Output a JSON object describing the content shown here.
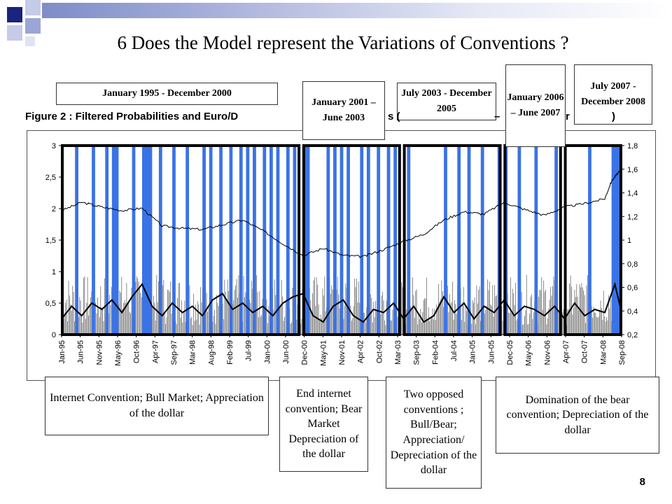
{
  "slide": {
    "title": "6 Does the Model represent the Variations of Conventions ?",
    "page_number": "8",
    "accent_color": "#9aa6d6"
  },
  "figure_caption": "Figure 2 : Filtered Probabilities and Euro/D",
  "caption_fragments": [
    "s (",
    "– ",
    "r",
    ")"
  ],
  "period_boxes": [
    {
      "label": "January 1995 - December 2000"
    },
    {
      "label": "January 2001 – June 2003"
    },
    {
      "label": "July 2003 - December 2005"
    },
    {
      "label": "January 2006 – June 2007"
    },
    {
      "label": "July 2007 - December 2008"
    }
  ],
  "annotations": [
    {
      "text": "Internet Convention; Bull Market; Appreciation of the dollar"
    },
    {
      "text": "End internet convention; Bear Market Depreciation of the dollar"
    },
    {
      "text": "Two opposed conventions ; Bull/Bear; Appreciation/ Depreciation of the dollar"
    },
    {
      "text": "Domination of the bear convention; Depreciation of the dollar"
    }
  ],
  "chart_data": {
    "type": "line",
    "x_tick_labels": [
      "Jan-95",
      "Jun-95",
      "Nov-95",
      "May-96",
      "Oct-96",
      "Apr-97",
      "Sep-97",
      "Mar-98",
      "Aug-98",
      "Feb-99",
      "Jul-99",
      "Jan-00",
      "Jun-00",
      "Dec-00",
      "May-01",
      "Nov-01",
      "Apr-02",
      "Oct-02",
      "Mar-03",
      "Sep-03",
      "Feb-04",
      "Jul-04",
      "Jan-05",
      "Jun-05",
      "Dec-05",
      "May-06",
      "Nov-06",
      "Apr-07",
      "Oct-07",
      "Mar-08",
      "Sep-08"
    ],
    "left_axis": {
      "ticks": [
        "0",
        "0,5",
        "1",
        "1,5",
        "2",
        "2,5",
        "3"
      ],
      "ylim": [
        0,
        3
      ]
    },
    "right_axis": {
      "ticks": [
        "0,2",
        "0,4",
        "0,6",
        "0,8",
        "1",
        "1,2",
        "1,4",
        "1,6",
        "1,8"
      ],
      "ylim": [
        0.2,
        1.8
      ]
    },
    "series": [
      {
        "axis": "right",
        "color": "#000000",
        "months": [
          0,
          6,
          12,
          18,
          24,
          30,
          36,
          42,
          48,
          54,
          60,
          66,
          72,
          78,
          84,
          90,
          96,
          102,
          108,
          114,
          120,
          126,
          132,
          138,
          144,
          150,
          156,
          162,
          164,
          166,
          167
        ],
        "values": [
          1.25,
          1.32,
          1.28,
          1.25,
          1.27,
          1.12,
          1.1,
          1.09,
          1.13,
          1.17,
          1.08,
          0.97,
          0.87,
          0.93,
          0.87,
          0.86,
          0.92,
          0.99,
          1.05,
          1.17,
          1.24,
          1.22,
          1.32,
          1.26,
          1.21,
          1.28,
          1.31,
          1.35,
          1.5,
          1.57,
          1.59
        ]
      },
      {
        "axis": "left",
        "color": "#000000",
        "kind": "filtered-probability-smoothed",
        "months": [
          0,
          3,
          6,
          9,
          12,
          15,
          18,
          21,
          24,
          27,
          30,
          33,
          36,
          39,
          42,
          45,
          48,
          51,
          54,
          57,
          60,
          63,
          66,
          69,
          72,
          75,
          78,
          81,
          84,
          87,
          90,
          93,
          96,
          99,
          102,
          105,
          108,
          111,
          114,
          117,
          120,
          123,
          126,
          129,
          132,
          135,
          138,
          141,
          144,
          147,
          150,
          153,
          156,
          159,
          162,
          165,
          167
        ],
        "values": [
          0.25,
          0.45,
          0.3,
          0.5,
          0.4,
          0.55,
          0.35,
          0.6,
          0.8,
          0.45,
          0.3,
          0.5,
          0.35,
          0.45,
          0.3,
          0.55,
          0.65,
          0.4,
          0.5,
          0.35,
          0.45,
          0.3,
          0.5,
          0.6,
          0.65,
          0.3,
          0.2,
          0.45,
          0.55,
          0.3,
          0.2,
          0.4,
          0.35,
          0.5,
          0.25,
          0.45,
          0.2,
          0.3,
          0.6,
          0.35,
          0.5,
          0.25,
          0.45,
          0.35,
          0.55,
          0.3,
          0.45,
          0.4,
          0.3,
          0.45,
          0.25,
          0.5,
          0.3,
          0.4,
          0.35,
          0.8,
          0.35
        ]
      },
      {
        "axis": "left",
        "color": "#808080",
        "kind": "filtered-probability-raw",
        "amplitude": [
          0,
          0.95
        ]
      },
      {
        "axis": "left",
        "color": "#3a73e6",
        "kind": "regime-indicator",
        "value": 3,
        "month_ranges": [
          [
            4,
            5
          ],
          [
            9,
            10
          ],
          [
            13,
            14
          ],
          [
            15,
            17
          ],
          [
            21,
            22
          ],
          [
            24,
            27
          ],
          [
            29,
            30
          ],
          [
            33,
            34
          ],
          [
            37,
            38
          ],
          [
            42,
            43
          ],
          [
            44,
            45
          ],
          [
            47,
            48
          ],
          [
            50,
            51
          ],
          [
            53,
            54
          ],
          [
            55,
            56
          ],
          [
            57,
            58
          ],
          [
            60,
            61
          ],
          [
            62,
            63
          ],
          [
            64,
            65
          ],
          [
            67,
            68
          ],
          [
            69,
            70
          ],
          [
            72,
            74
          ],
          [
            79,
            80
          ],
          [
            81,
            82
          ],
          [
            83,
            84
          ],
          [
            85,
            86
          ],
          [
            89,
            90
          ],
          [
            91,
            92
          ],
          [
            94,
            95
          ],
          [
            97,
            98
          ],
          [
            99,
            100
          ],
          [
            103,
            104
          ],
          [
            114,
            115
          ],
          [
            118,
            119
          ],
          [
            121,
            122
          ],
          [
            125,
            126
          ],
          [
            130,
            131
          ],
          [
            132,
            133
          ],
          [
            136,
            137
          ],
          [
            141,
            142
          ],
          [
            147,
            148
          ],
          [
            157,
            158
          ],
          [
            164,
            167
          ]
        ]
      }
    ],
    "grid": false,
    "regime_windows_months": [
      [
        0,
        71
      ],
      [
        72,
        101
      ],
      [
        102,
        131
      ],
      [
        132,
        149
      ],
      [
        150,
        167
      ]
    ]
  }
}
